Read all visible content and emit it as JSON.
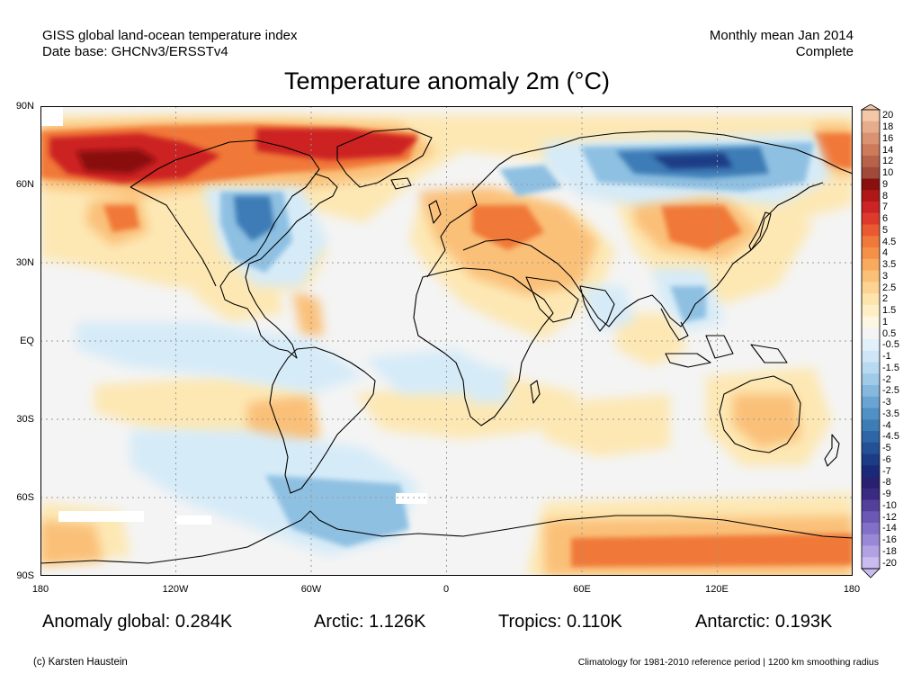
{
  "header": {
    "left_line1": "GISS global land-ocean temperature index",
    "left_line2": "Date base: GHCNv3/ERSSTv4",
    "right_line1": "Monthly mean Jan 2014",
    "right_line2": "Complete"
  },
  "title": "Temperature anomaly 2m (°C)",
  "lat_labels": [
    "90N",
    "60N",
    "30N",
    "EQ",
    "30S",
    "60S",
    "90S"
  ],
  "lon_labels": [
    "180",
    "120W",
    "60W",
    "0",
    "60E",
    "120E",
    "180"
  ],
  "colorbar": {
    "labels": [
      "20",
      "18",
      "16",
      "14",
      "12",
      "10",
      "9",
      "8",
      "7",
      "6",
      "5",
      "4.5",
      "4",
      "3.5",
      "3",
      "2.5",
      "2",
      "1.5",
      "1",
      "0.5",
      "-0.5",
      "-1",
      "-1.5",
      "-2",
      "-2.5",
      "-3",
      "-3.5",
      "-4",
      "-4.5",
      "-5",
      "-6",
      "-7",
      "-8",
      "-9",
      "-10",
      "-12",
      "-14",
      "-16",
      "-18",
      "-20"
    ],
    "colors": [
      "#f3c7a8",
      "#e6ad8c",
      "#d99372",
      "#cc7a5a",
      "#b8624a",
      "#a04a3c",
      "#8a1010",
      "#b01818",
      "#cc2424",
      "#de3a2c",
      "#ea5a30",
      "#f07838",
      "#f59048",
      "#f8aa5e",
      "#fac078",
      "#fcd390",
      "#fde3ac",
      "#fdeec6",
      "#fdf6e0",
      "#f4f4f4",
      "#e2f0fa",
      "#cfe6f6",
      "#b8daf0",
      "#a0cae8",
      "#86b8de",
      "#6aa4d2",
      "#5090c4",
      "#3e7cb6",
      "#2e66a6",
      "#245096",
      "#1c3c86",
      "#1a2a78",
      "#2a2070",
      "#3a2a82",
      "#52409a",
      "#6a58b4",
      "#8270c6",
      "#9a88d6",
      "#b2a2e4",
      "#cabcf0"
    ]
  },
  "stats": {
    "global": "Anomaly global: 0.284K",
    "arctic": "Arctic: 1.126K",
    "tropics": "Tropics: 0.110K",
    "antarctic": "Antarctic: 0.193K"
  },
  "footer": {
    "credit": "(c) Karsten Haustein",
    "note": "Climatology for 1981-2010 reference period | 1200 km smoothing radius"
  },
  "map_colors": {
    "ocean_bg": "#f4f4f4",
    "warm_light": "#fde8b4",
    "warm_mid": "#fac078",
    "warm_strong": "#f07838",
    "warm_hot": "#cc2424",
    "warm_extreme": "#8a1010",
    "cool_light": "#d6ebf8",
    "cool_mid": "#8ec0e2",
    "cool_strong": "#3e7cb6",
    "cool_deep": "#1c3c86",
    "coast": "#000000",
    "grid": "#999999"
  }
}
